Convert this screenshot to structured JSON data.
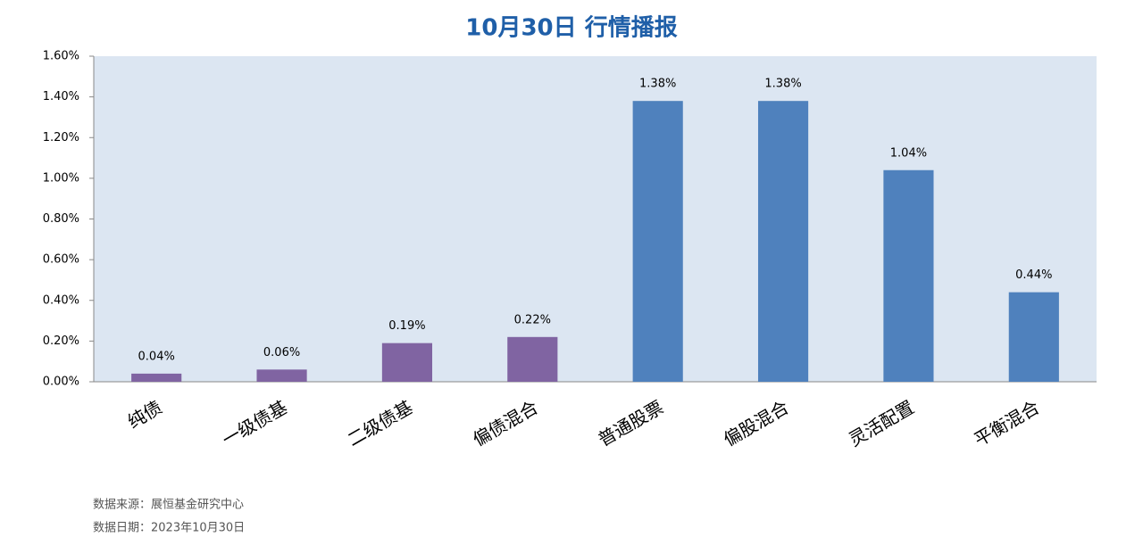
{
  "chart_data": {
    "type": "bar",
    "title": "10月30日  行情播报",
    "categories": [
      "纯债",
      "一级债基",
      "二级债基",
      "偏债混合",
      "普通股票",
      "偏股混合",
      "灵活配置",
      "平衡混合"
    ],
    "values": [
      0.04,
      0.06,
      0.19,
      0.22,
      1.38,
      1.38,
      1.04,
      0.44
    ],
    "value_labels": [
      "0.04%",
      "0.06%",
      "0.19%",
      "0.22%",
      "1.38%",
      "1.38%",
      "1.04%",
      "0.44%"
    ],
    "colors": [
      "#8064a2",
      "#8064a2",
      "#8064a2",
      "#8064a2",
      "#4f81bd",
      "#4f81bd",
      "#4f81bd",
      "#4f81bd"
    ],
    "ylim": [
      0,
      1.6
    ],
    "yticks": [
      {
        "value": 0,
        "label": "0.00%"
      },
      {
        "value": 0.2,
        "label": "0.20%"
      },
      {
        "value": 0.4,
        "label": "0.40%"
      },
      {
        "value": 0.6,
        "label": "0.60%"
      },
      {
        "value": 0.8,
        "label": "0.80%"
      },
      {
        "value": 1.0,
        "label": "1.00%"
      },
      {
        "value": 1.2,
        "label": "1.20%"
      },
      {
        "value": 1.4,
        "label": "1.40%"
      },
      {
        "value": 1.6,
        "label": "1.60%"
      }
    ],
    "grid": false
  },
  "notes": [
    "数据来源：展恒基金研究中心",
    "数据日期：2023年10月30日"
  ]
}
